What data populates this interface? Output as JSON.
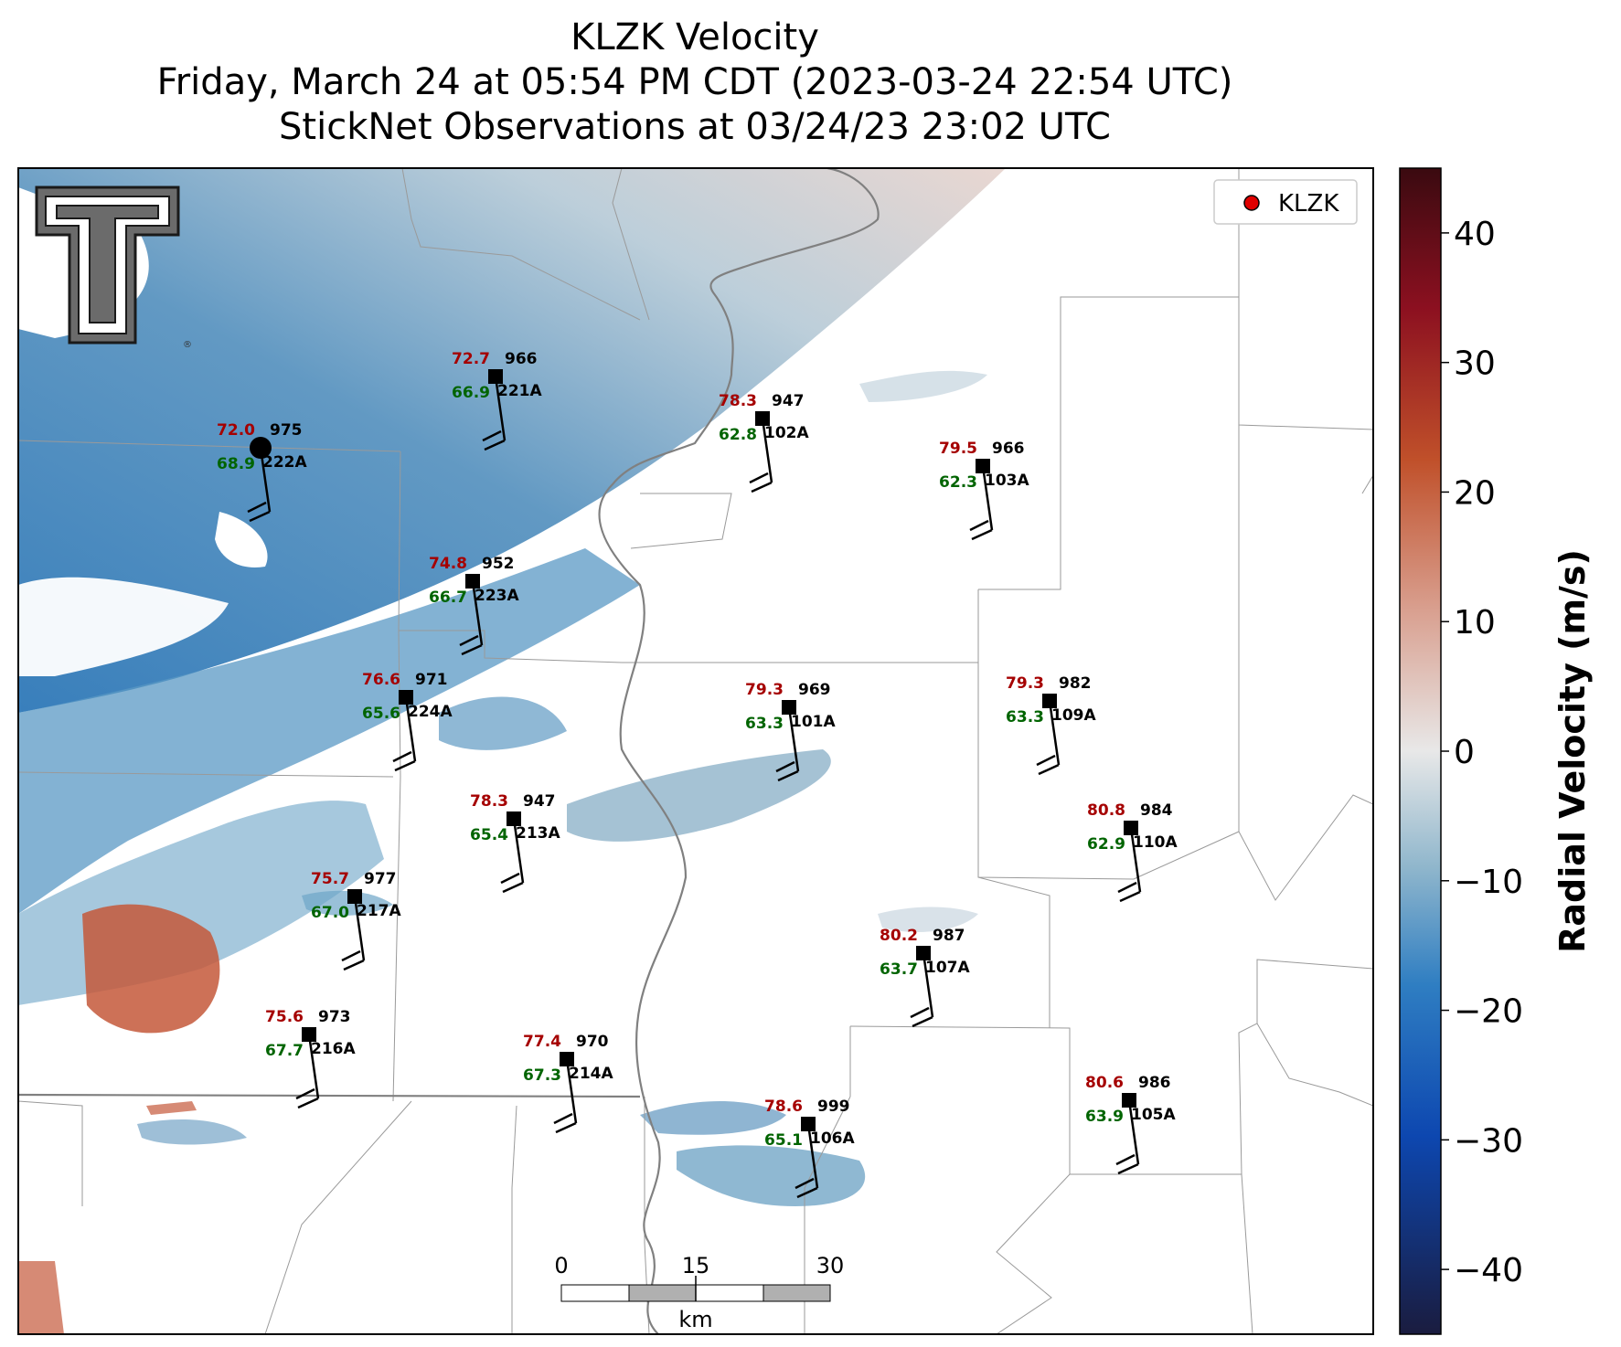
{
  "title": {
    "line1": "KLZK Velocity",
    "line2": "Friday, March 24 at 05:54 PM CDT (2023-03-24 22:54 UTC)",
    "line3": "StickNet Observations at 03/24/23 23:02 UTC"
  },
  "legend": {
    "label": "KLZK",
    "marker_color": "#e00000"
  },
  "logo": {
    "name": "Texas Tech double-T logo",
    "trademark": "®"
  },
  "colorbar": {
    "label": "Radial Velocity (m/s)",
    "range": [
      -45,
      45
    ],
    "ticks": [
      {
        "value": 40,
        "label": "40"
      },
      {
        "value": 30,
        "label": "30"
      },
      {
        "value": 20,
        "label": "20"
      },
      {
        "value": 10,
        "label": "10"
      },
      {
        "value": 0,
        "label": "0"
      },
      {
        "value": -10,
        "label": "−10"
      },
      {
        "value": -20,
        "label": "−20"
      },
      {
        "value": -30,
        "label": "−30"
      },
      {
        "value": -40,
        "label": "−40"
      }
    ],
    "colors": [
      "#1a1c3f",
      "#0d47b0",
      "#2f7ec2",
      "#8fb6cc",
      "#e8e8e8",
      "#d9a090",
      "#c0502a",
      "#8c1020",
      "#3a0a10"
    ]
  },
  "scale_bar": {
    "labels": [
      "0",
      "15",
      "30"
    ],
    "unit": "km"
  },
  "stations": [
    {
      "id": "222A",
      "temp": "72.0",
      "pressure": "975",
      "dewpoint": "68.9"
    },
    {
      "id": "221A",
      "temp": "72.7",
      "pressure": "966",
      "dewpoint": "66.9"
    },
    {
      "id": "102A",
      "temp": "78.3",
      "pressure": "947",
      "dewpoint": "62.8"
    },
    {
      "id": "103A",
      "temp": "79.5",
      "pressure": "966",
      "dewpoint": "62.3"
    },
    {
      "id": "223A",
      "temp": "74.8",
      "pressure": "952",
      "dewpoint": "66.7"
    },
    {
      "id": "224A",
      "temp": "76.6",
      "pressure": "971",
      "dewpoint": "65.6"
    },
    {
      "id": "101A",
      "temp": "79.3",
      "pressure": "969",
      "dewpoint": "63.3"
    },
    {
      "id": "109A",
      "temp": "79.3",
      "pressure": "982",
      "dewpoint": "63.3"
    },
    {
      "id": "213A",
      "temp": "78.3",
      "pressure": "947",
      "dewpoint": "65.4"
    },
    {
      "id": "110A",
      "temp": "80.8",
      "pressure": "984",
      "dewpoint": "62.9"
    },
    {
      "id": "217A",
      "temp": "75.7",
      "pressure": "977",
      "dewpoint": "67.0"
    },
    {
      "id": "107A",
      "temp": "80.2",
      "pressure": "987",
      "dewpoint": "63.7"
    },
    {
      "id": "216A",
      "temp": "75.6",
      "pressure": "973",
      "dewpoint": "67.7"
    },
    {
      "id": "214A",
      "temp": "77.4",
      "pressure": "970",
      "dewpoint": "67.3"
    },
    {
      "id": "106A",
      "temp": "78.6",
      "pressure": "999",
      "dewpoint": "65.1"
    },
    {
      "id": "105A",
      "temp": "80.6",
      "pressure": "986",
      "dewpoint": "63.9"
    }
  ]
}
